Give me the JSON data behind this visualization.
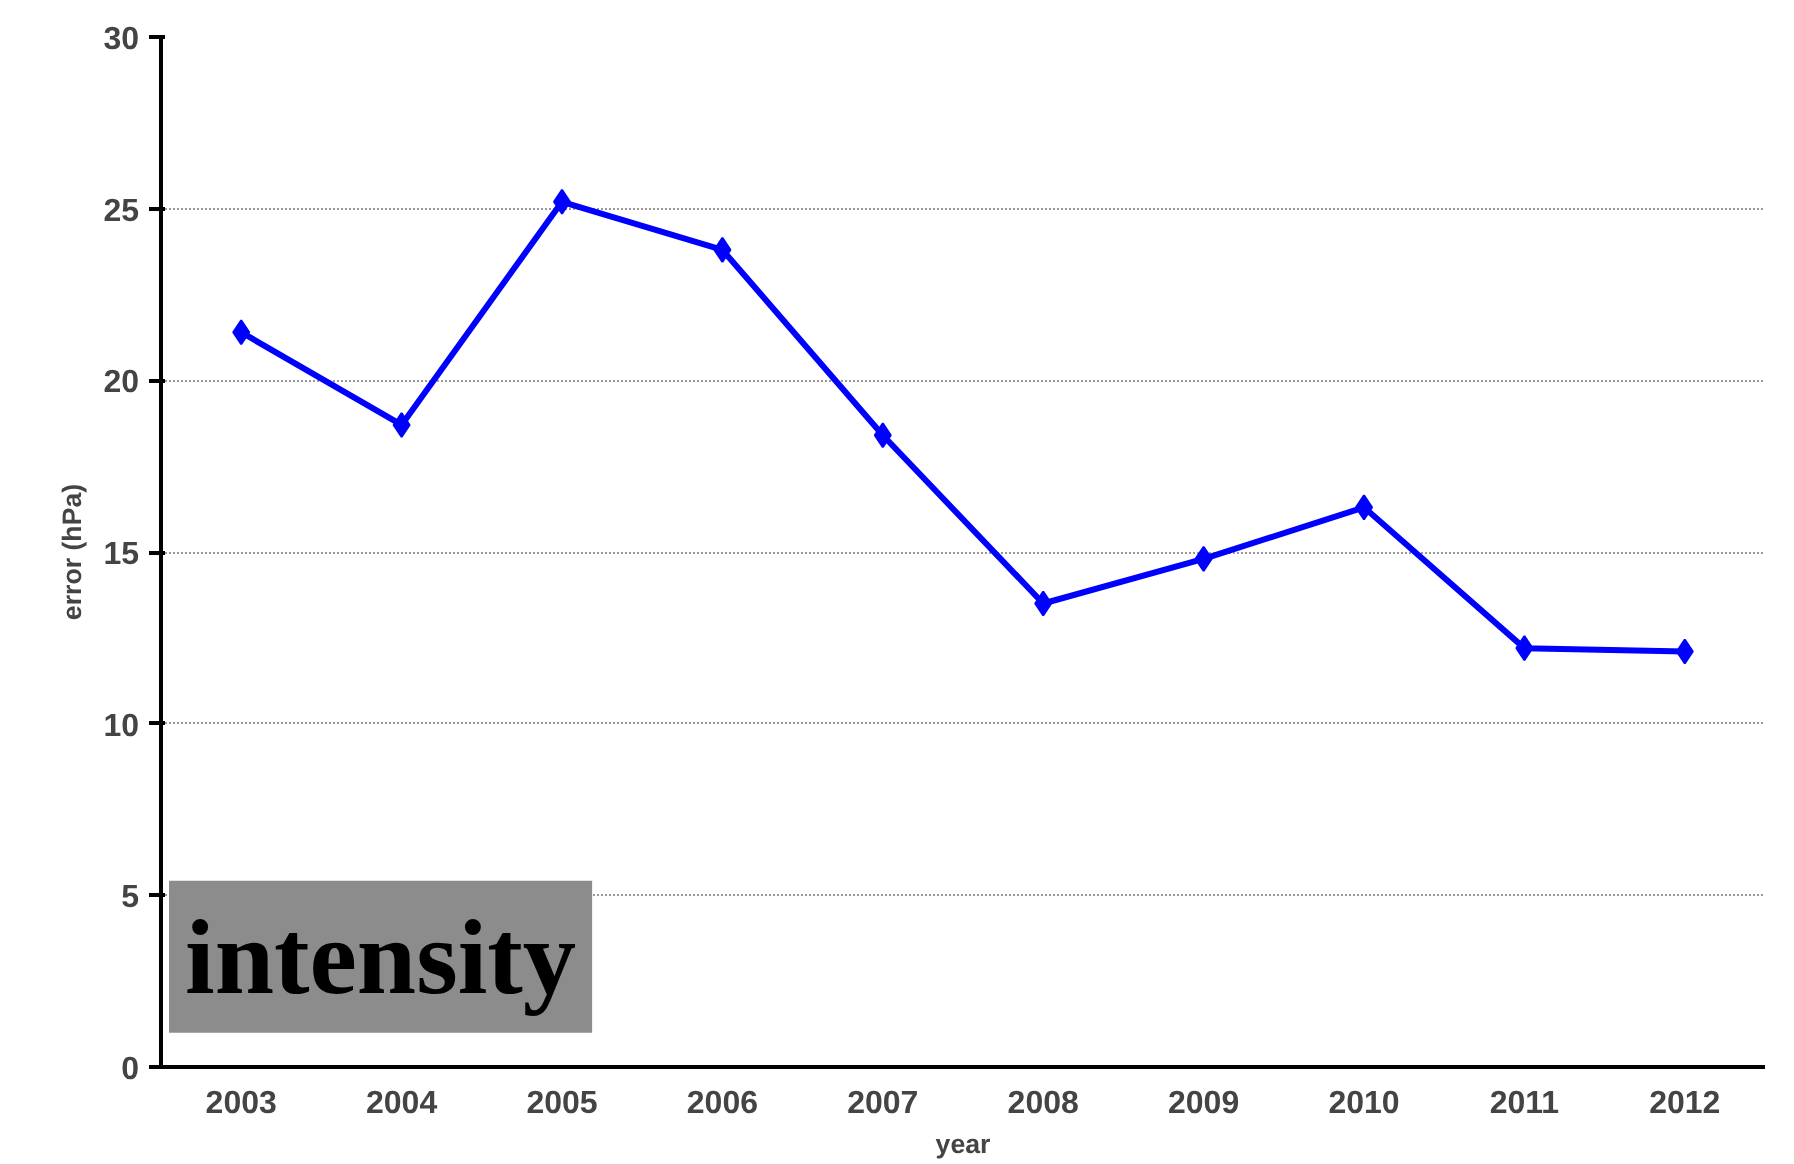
{
  "chart_data": {
    "type": "line",
    "xlabel": "year",
    "ylabel": "error (hPa)",
    "categories": [
      "2003",
      "2004",
      "2005",
      "2006",
      "2007",
      "2008",
      "2009",
      "2010",
      "2011",
      "2012"
    ],
    "series": [
      {
        "color": "#0000ff",
        "values": [
          21.4,
          18.7,
          25.2,
          23.8,
          18.4,
          13.5,
          14.8,
          16.3,
          12.2,
          12.1
        ]
      }
    ],
    "ylim": [
      0,
      30
    ],
    "yticks": [
      0,
      5,
      10,
      15,
      20,
      25,
      30
    ],
    "grid": "y",
    "marker": "diamond",
    "line_style": "solid",
    "annotations": [
      "intensity"
    ]
  }
}
